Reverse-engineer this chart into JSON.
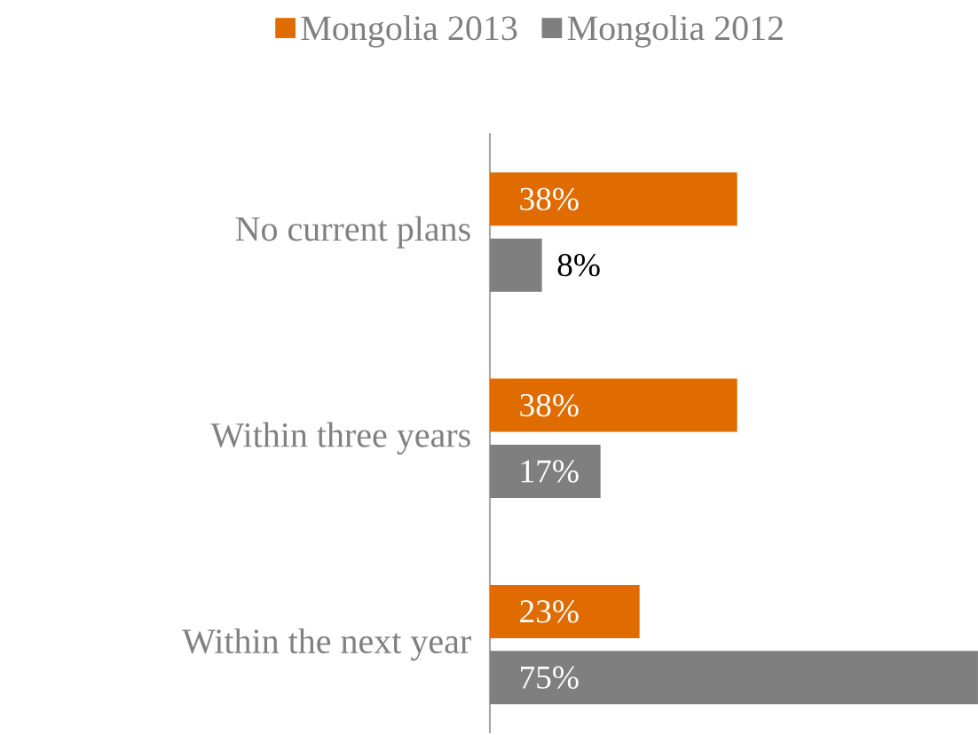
{
  "chart_data": {
    "type": "bar",
    "orientation": "horizontal",
    "categories": [
      "No current plans",
      "Within three years",
      "Within the next year"
    ],
    "series": [
      {
        "name": "Mongolia 2013",
        "color": "#e06c00",
        "values": [
          38,
          38,
          23
        ],
        "value_labels": [
          "38%",
          "38%",
          "23%"
        ]
      },
      {
        "name": "Mongolia 2012",
        "color": "#7f7f7f",
        "values": [
          8,
          17,
          75
        ],
        "value_labels": [
          "8%",
          "17%",
          "75%"
        ]
      }
    ],
    "xlim": [
      0,
      75
    ],
    "tick_labels": "y",
    "legend": "top"
  }
}
